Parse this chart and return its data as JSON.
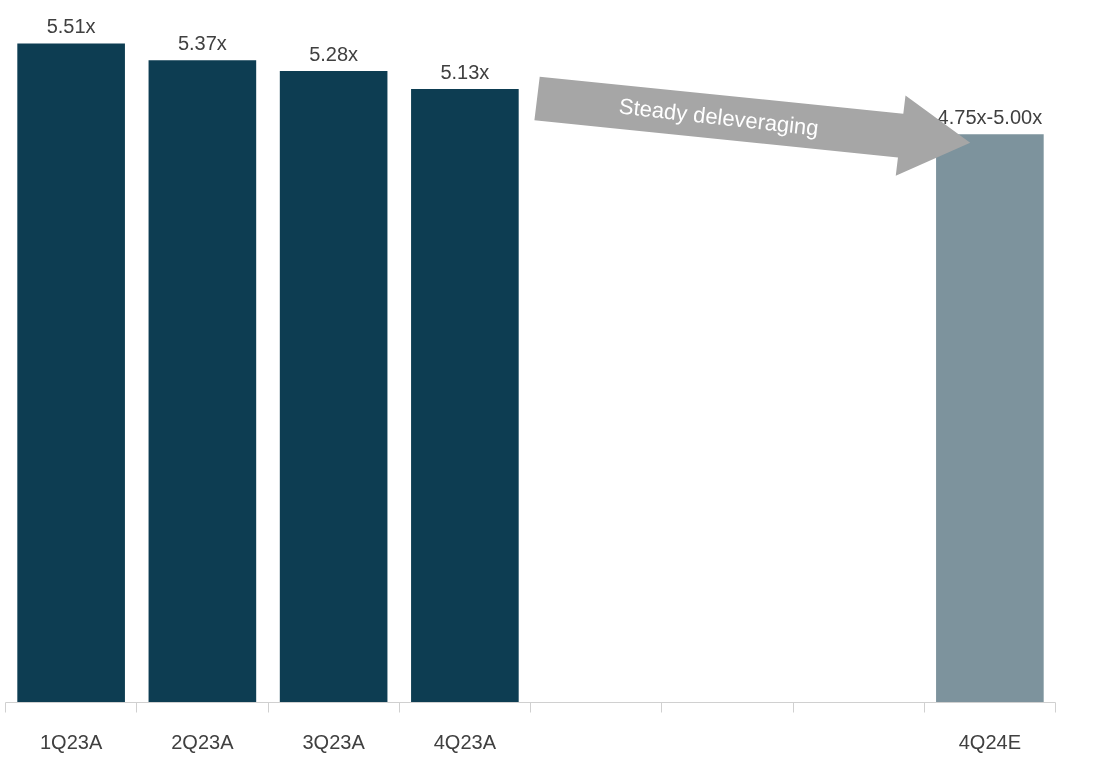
{
  "chart_data": {
    "type": "bar",
    "categories": [
      "1Q23A",
      "2Q23A",
      "3Q23A",
      "4Q23A",
      null,
      null,
      null,
      "4Q24E"
    ],
    "values": [
      5.51,
      5.37,
      5.28,
      5.13,
      null,
      null,
      null,
      4.75
    ],
    "colors": [
      "#0d3d52",
      "#0d3d52",
      "#0d3d52",
      "#0d3d52",
      "#0d3d52",
      "#0d3d52",
      "#0d3d52",
      "#7d939d"
    ],
    "value_labels": [
      "5.51x",
      "5.37x",
      "5.28x",
      "5.13x",
      null,
      null,
      null,
      "4.75x-5.00x"
    ],
    "tick_labels": "x",
    "grid": false,
    "annotations": [
      "Steady deleveraging"
    ]
  }
}
